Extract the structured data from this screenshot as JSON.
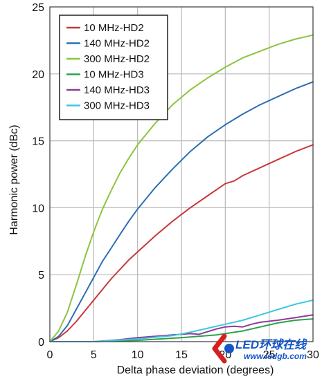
{
  "chart_data": {
    "type": "line",
    "title": "",
    "xlabel": "Delta phase deviation (degrees)",
    "ylabel": "Harmonic power (dBc)",
    "xlim": [
      0,
      30
    ],
    "ylim": [
      0,
      25
    ],
    "xticks": [
      0,
      5,
      10,
      15,
      20,
      25,
      30
    ],
    "yticks": [
      0,
      5,
      10,
      15,
      20,
      25
    ],
    "grid": true,
    "legend_position": "top-left",
    "series": [
      {
        "name": "10 MHz-HD2",
        "color": "#c8383a",
        "x": [
          0,
          1,
          2,
          3,
          4,
          5,
          6,
          7,
          8,
          9,
          10,
          12,
          14,
          16,
          18,
          20,
          21,
          22,
          24,
          26,
          28,
          30
        ],
        "y": [
          0,
          0.3,
          0.8,
          1.5,
          2.3,
          3.1,
          3.9,
          4.7,
          5.4,
          6.1,
          6.7,
          7.9,
          9.0,
          10.0,
          10.9,
          11.8,
          12.0,
          12.4,
          13.0,
          13.6,
          14.2,
          14.7
        ]
      },
      {
        "name": "140 MHz-HD2",
        "color": "#2e6db4",
        "x": [
          0,
          1,
          2,
          3,
          4,
          5,
          6,
          7,
          8,
          9,
          10,
          12,
          14,
          16,
          18,
          20,
          22,
          24,
          26,
          28,
          30
        ],
        "y": [
          0,
          0.4,
          1.2,
          2.4,
          3.6,
          4.8,
          6.0,
          7.0,
          8.0,
          9.0,
          9.9,
          11.5,
          12.9,
          14.2,
          15.3,
          16.2,
          17.0,
          17.7,
          18.3,
          18.9,
          19.4
        ]
      },
      {
        "name": "300 MHz-HD2",
        "color": "#8cc43c",
        "x": [
          0,
          1,
          2,
          3,
          4,
          5,
          6,
          7,
          8,
          9,
          10,
          12,
          14,
          16,
          18,
          20,
          22,
          24,
          26,
          28,
          30
        ],
        "y": [
          0,
          0.8,
          2.2,
          4.2,
          6.3,
          8.2,
          9.9,
          11.3,
          12.6,
          13.7,
          14.7,
          16.3,
          17.7,
          18.8,
          19.7,
          20.5,
          21.2,
          21.7,
          22.2,
          22.6,
          22.9
        ]
      },
      {
        "name": "10 MHz-HD3",
        "color": "#2ea048",
        "x": [
          0,
          5,
          10,
          15,
          17,
          19,
          20,
          22,
          24,
          26,
          28,
          30
        ],
        "y": [
          0,
          0,
          0.1,
          0.3,
          0.4,
          0.5,
          0.6,
          0.8,
          1.1,
          1.4,
          1.6,
          1.7
        ]
      },
      {
        "name": "140 MHz-HD3",
        "color": "#8e3a9c",
        "x": [
          0,
          5,
          8,
          10,
          12,
          14,
          16,
          17,
          18,
          19,
          20,
          21,
          22,
          23,
          24,
          26,
          28,
          30
        ],
        "y": [
          0,
          0,
          0.15,
          0.3,
          0.4,
          0.5,
          0.6,
          0.55,
          0.75,
          0.95,
          1.1,
          1.15,
          1.1,
          1.3,
          1.45,
          1.6,
          1.8,
          2.0
        ]
      },
      {
        "name": "300 MHz-HD3",
        "color": "#3cc8e0",
        "x": [
          0,
          5,
          10,
          14,
          16,
          18,
          20,
          22,
          24,
          26,
          28,
          30
        ],
        "y": [
          0,
          0,
          0.2,
          0.45,
          0.7,
          1.0,
          1.3,
          1.6,
          2.0,
          2.4,
          2.8,
          3.1
        ]
      }
    ]
  },
  "watermark": {
    "brand": "LED环球在线",
    "url": "www.ledgb.com"
  }
}
